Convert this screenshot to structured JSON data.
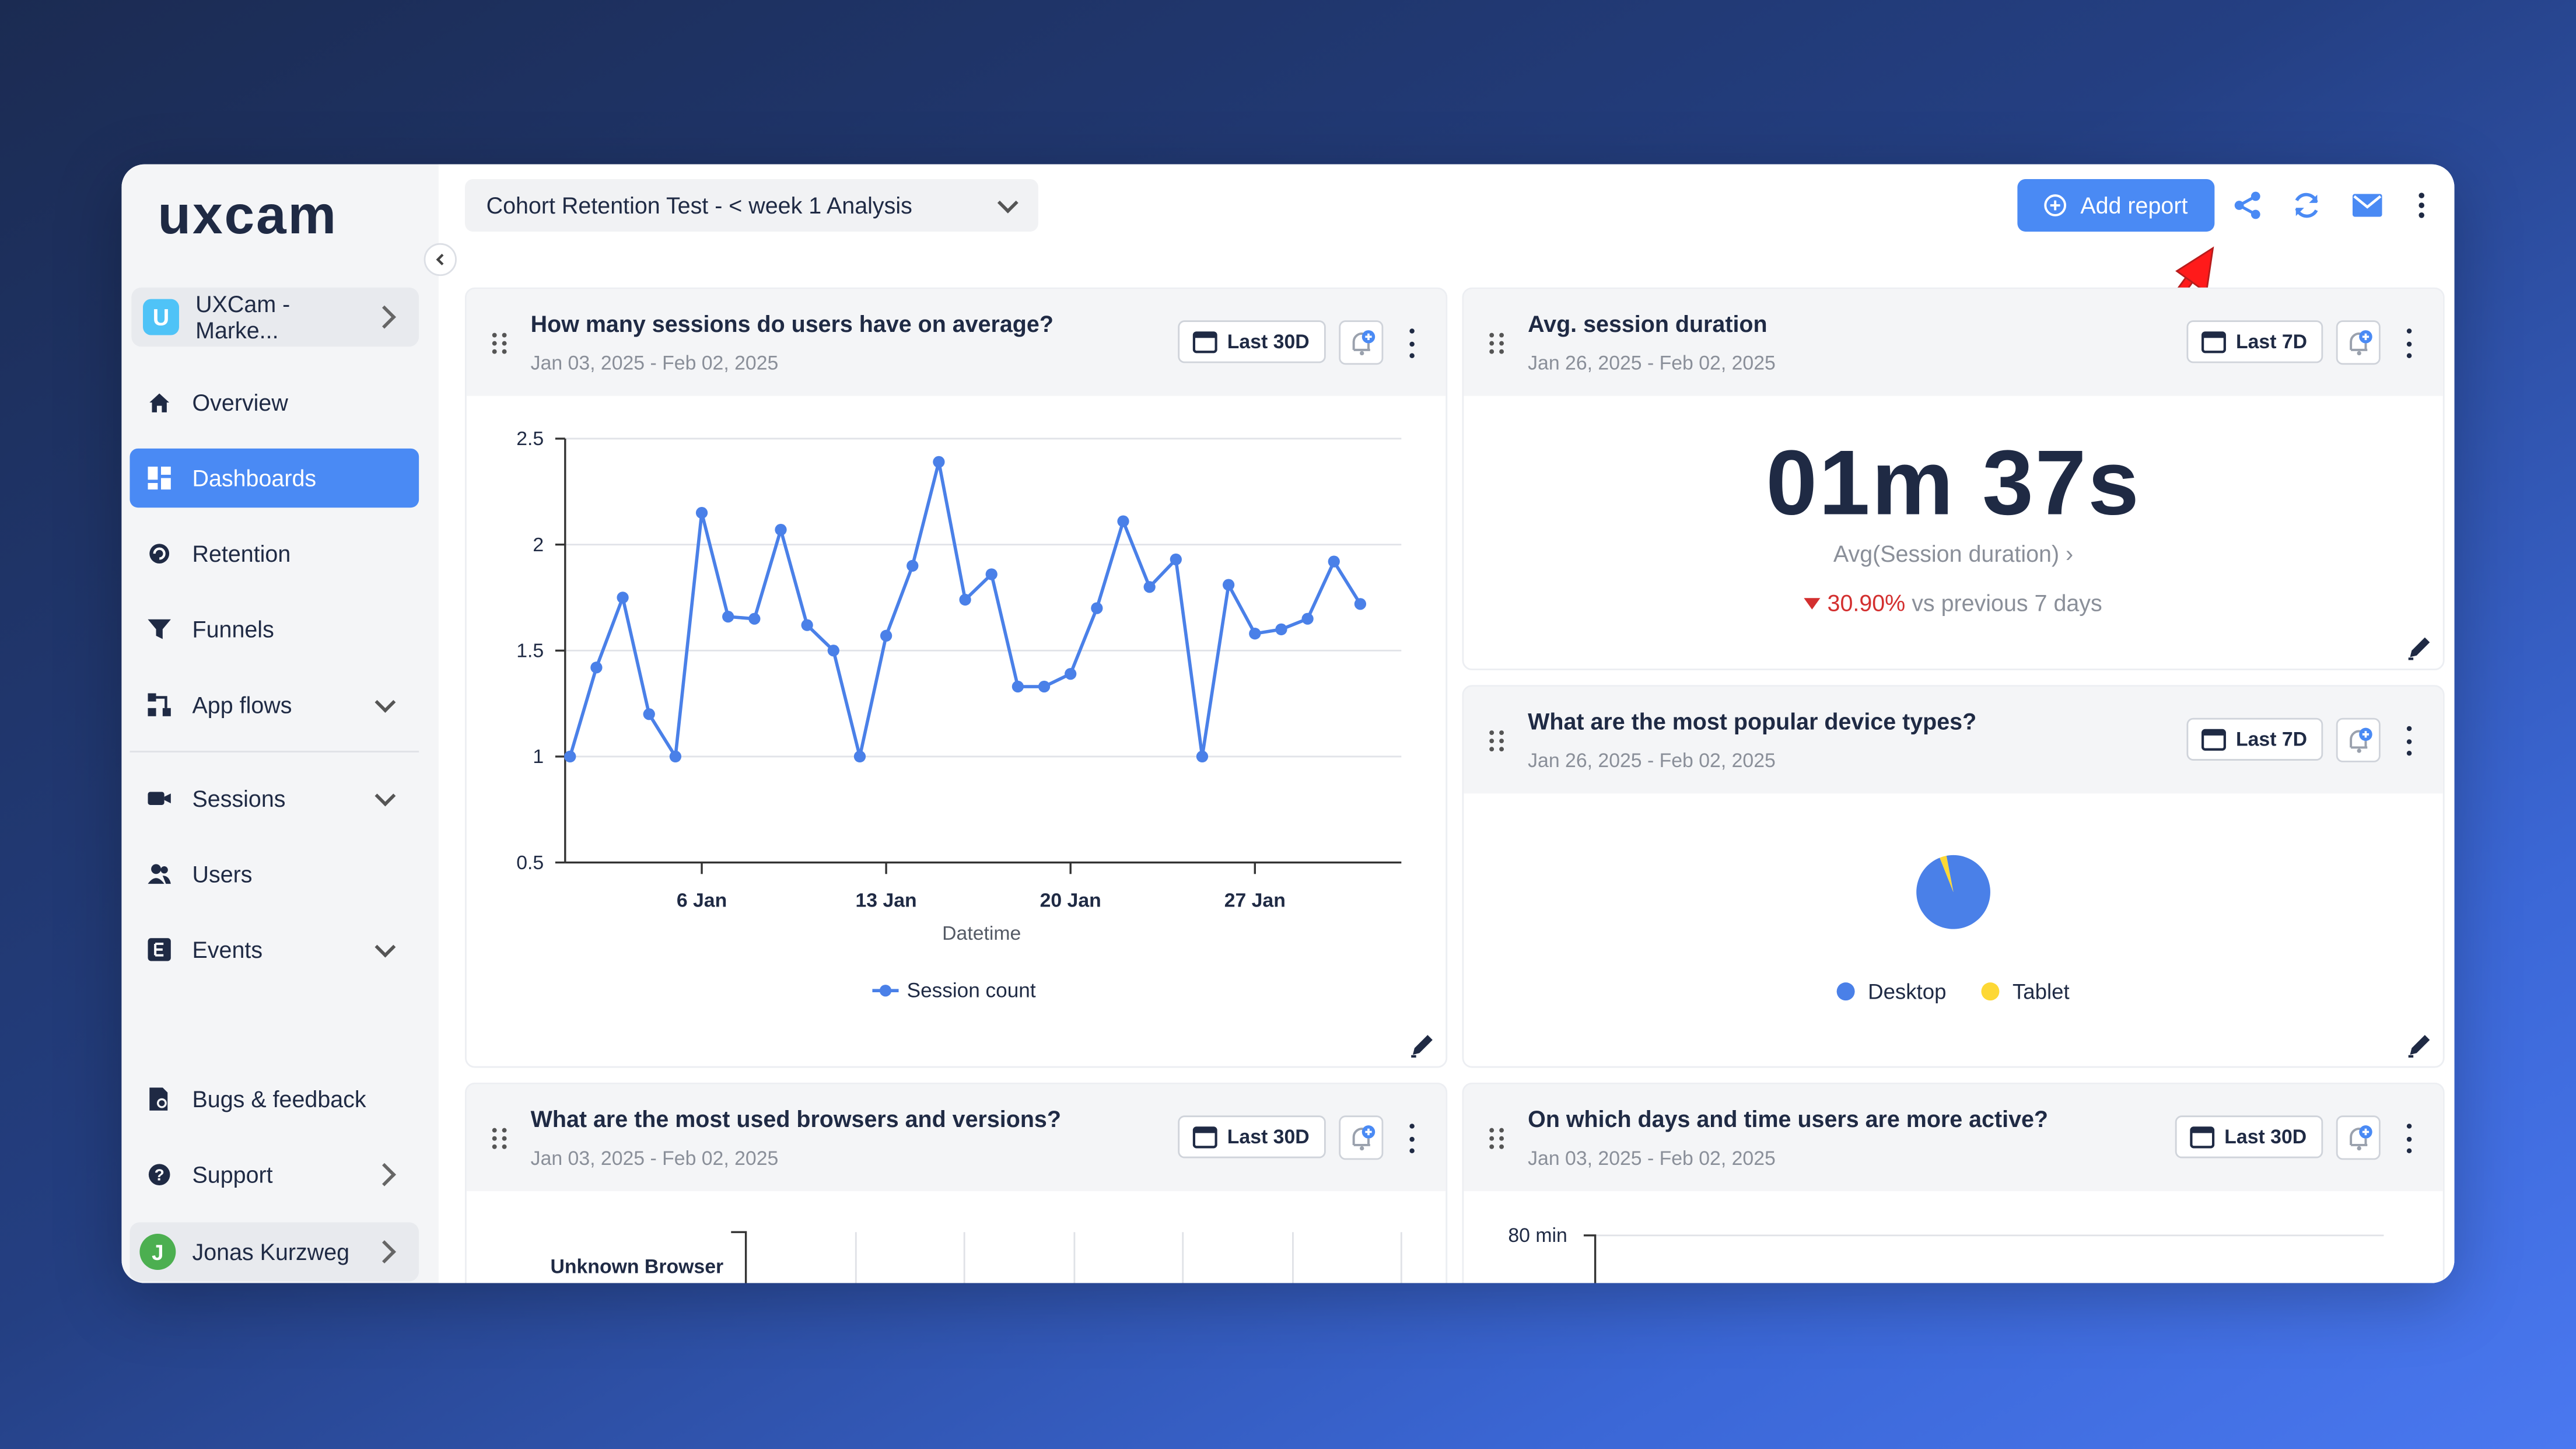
{
  "app": {
    "logo_text": "uxcam"
  },
  "workspace": {
    "badge": "U",
    "name": "UXCam - Marke..."
  },
  "nav": {
    "overview": "Overview",
    "dashboards": "Dashboards",
    "retention": "Retention",
    "funnels": "Funnels",
    "app_flows": "App flows",
    "sessions": "Sessions",
    "users": "Users",
    "events": "Events",
    "bugs": "Bugs & feedback",
    "support": "Support"
  },
  "user": {
    "initial": "J",
    "name": "Jonas Kurzweg"
  },
  "toolbar": {
    "dashboard_name": "Cohort Retention Test - < week 1 Analysis",
    "add_report": "Add report",
    "icons": [
      "share-icon",
      "refresh-icon",
      "mail-icon",
      "more-vertical-icon"
    ]
  },
  "cards": {
    "sessions_avg": {
      "title": "How many sessions do users have on average?",
      "date_range": "Jan 03, 2025 - Feb 02, 2025",
      "period": "Last 30D"
    },
    "avg_duration": {
      "title": "Avg. session duration",
      "date_range": "Jan 26, 2025 - Feb 02, 2025",
      "period": "Last 7D",
      "value": "01m 37s",
      "metric_label": "Avg(Session duration) ›",
      "delta_value": "30.90%",
      "delta_text": " vs previous 7 days"
    },
    "device_types": {
      "title": "What are the most popular device types?",
      "date_range": "Jan 26, 2025 - Feb 02, 2025",
      "period": "Last 7D",
      "legend": [
        "Desktop",
        "Tablet"
      ]
    },
    "browsers": {
      "title": "What are the most used browsers and versions?",
      "date_range": "Jan 03, 2025 - Feb 02, 2025",
      "period": "Last 30D",
      "first_row": "Unknown Browser"
    },
    "active_days": {
      "title": "On which days and time users are more active?",
      "date_range": "Jan 03, 2025 - Feb 02, 2025",
      "period": "Last 30D",
      "first_tick": "80 min"
    }
  },
  "colors": {
    "accent": "#4a8af4",
    "series": "#4a80e8",
    "tablet": "#fdd835",
    "negative": "#d32f2f"
  },
  "chart_data": [
    {
      "type": "line",
      "xlabel": "Datetime",
      "ylabel": "",
      "ylim": [
        0.5,
        2.5
      ],
      "yticks": [
        "0.5",
        "1",
        "1.5",
        "2",
        "2.5"
      ],
      "xticks": [
        "6 Jan",
        "13 Jan",
        "20 Jan",
        "27 Jan"
      ],
      "grid": true,
      "legend": "bottom",
      "x": [
        "Jan 01",
        "Jan 02",
        "Jan 03",
        "Jan 04",
        "Jan 05",
        "Jan 06",
        "Jan 07",
        "Jan 08",
        "Jan 09",
        "Jan 10",
        "Jan 11",
        "Jan 12",
        "Jan 13",
        "Jan 14",
        "Jan 15",
        "Jan 16",
        "Jan 17",
        "Jan 18",
        "Jan 19",
        "Jan 20",
        "Jan 21",
        "Jan 22",
        "Jan 23",
        "Jan 24",
        "Jan 25",
        "Jan 26",
        "Jan 27",
        "Jan 28",
        "Jan 29",
        "Jan 30",
        "Jan 31"
      ],
      "series": [
        {
          "name": "Session count",
          "values": [
            1,
            1.42,
            1.75,
            1.2,
            1,
            2.15,
            1.66,
            1.65,
            2.07,
            1.62,
            1.5,
            1,
            1.57,
            1.9,
            2.39,
            1.74,
            1.86,
            1.33,
            1.33,
            1.39,
            1.7,
            2.11,
            1.8,
            1.93,
            1,
            1.81,
            1.58,
            1.6,
            1.65,
            1.92,
            1.72
          ]
        }
      ]
    },
    {
      "type": "pie",
      "categories": [
        "Desktop",
        "Tablet"
      ],
      "values": [
        97,
        3
      ]
    }
  ]
}
